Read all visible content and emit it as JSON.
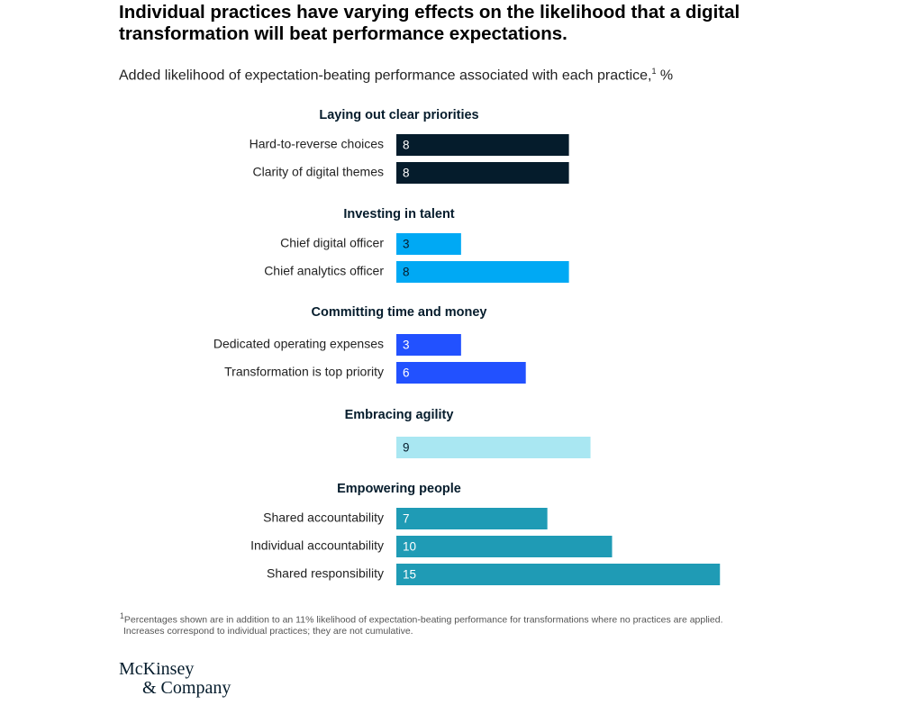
{
  "chart_data": {
    "type": "bar",
    "orientation": "horizontal",
    "title": "Individual practices have varying effects on the likelihood that a digital transformation will beat performance expectations.",
    "subtitle_text": "Added likelihood of expectation-beating performance associated with each practice,",
    "subtitle_sup": "1",
    "subtitle_unit": " %",
    "groups": [
      {
        "name": "Laying out clear priorities",
        "color": "#051c2c",
        "label_color": "#ffffff",
        "items": [
          {
            "label": "Hard-to-reverse choices",
            "value": 8
          },
          {
            "label": "Clarity of digital themes",
            "value": 8
          }
        ]
      },
      {
        "name": "Investing in talent",
        "color": "#00a9f4",
        "label_color": "#051c2c",
        "items": [
          {
            "label": "Chief digital officer",
            "value": 3
          },
          {
            "label": "Chief analytics officer",
            "value": 8
          }
        ]
      },
      {
        "name": "Committing time and money",
        "color": "#2251ff",
        "label_color": "#ffffff",
        "items": [
          {
            "label": "Dedicated operating expenses",
            "value": 3
          },
          {
            "label": "Transformation is top priority",
            "value": 6
          }
        ]
      },
      {
        "name": "Embracing agility",
        "color": "#a9e7f2",
        "label_color": "#051c2c",
        "items": [
          {
            "label": "",
            "value": 9
          }
        ]
      },
      {
        "name": "Empowering people",
        "color": "#1f9bb5",
        "label_color": "#ffffff",
        "items": [
          {
            "label": "Shared accountability",
            "value": 7
          },
          {
            "label": "Individual accountability",
            "value": 10
          },
          {
            "label": "Shared responsibility",
            "value": 15
          }
        ]
      }
    ],
    "xlim": [
      0,
      15
    ],
    "grid": false,
    "legend": "none"
  },
  "footnote": {
    "marker": "1",
    "line1": "Percentages shown are in addition to an 11% likelihood of expectation-beating performance for transformations where no practices are applied.",
    "line2": "Increases correspond to individual practices; they are not cumulative."
  },
  "logo": {
    "line1": "McKinsey",
    "line2": "& Company"
  }
}
